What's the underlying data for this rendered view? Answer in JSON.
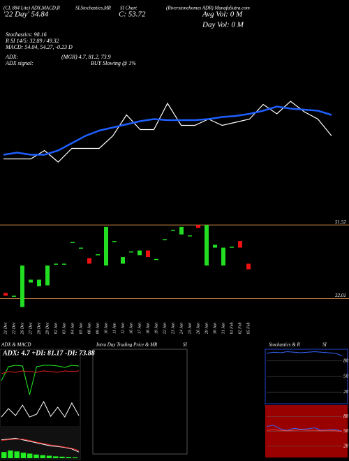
{
  "header": {
    "left": "(CL 884 Lite) ADX,MACD,R",
    "left2": "SI,Stochastics,MR",
    "mid": "SI Chart",
    "right": "(Riverstonehomes ADR) MunafaSutra.com",
    "day": "'22 Day' 54.84",
    "close": "C: 53.72",
    "avg_vol": "Avg Vol: 0  M",
    "day_vol": "Day Vol: 0   M",
    "stoch": "Stochastics: 98.16",
    "rsi": "R     SI 14/5: 32.89 / 49.32",
    "macd": "MACD: 54.04, 54.27, -0.23 D",
    "adx": "ADX:",
    "adx_vals": "(MGR) 4.7, 81.2, 73.9",
    "adx_signal": "ADX  signal:",
    "signal": "BUY Slowing @ 1%"
  },
  "chart_data": [
    {
      "type": "line",
      "ylim": [
        0,
        100
      ],
      "series": [
        {
          "color": "#ffffff",
          "values": [
            15,
            15,
            15,
            23,
            12,
            25,
            25,
            25,
            37,
            57,
            43,
            43,
            68,
            47,
            47,
            53,
            47,
            50,
            53,
            67,
            58,
            70,
            60,
            53,
            37
          ]
        },
        {
          "color": "#1f5fff",
          "values": [
            19,
            21,
            19,
            19,
            23,
            30,
            37,
            42,
            45,
            48,
            51,
            53,
            52,
            52,
            52,
            53,
            55,
            56,
            58,
            61,
            65,
            63,
            62,
            61,
            57
          ]
        }
      ]
    },
    {
      "type": "candlestick",
      "ylim": [
        0,
        100
      ],
      "up_color": "#22dd22",
      "down_color": "#ee1111",
      "categories": [
        "21 Dec",
        "22 Dec",
        "26 Dec",
        "27 Dec",
        "28 Dec",
        "29 Dec",
        "02 Jan",
        "03 Jan",
        "04 Jan",
        "05 Jan",
        "08 Jan",
        "09 Jan",
        "10 Jan",
        "11 Jan",
        "12 Jan",
        "16 Jan",
        "17 Jan",
        "18 Jan",
        "19 Jan",
        "22 Jan",
        "23 Jan",
        "24 Jan",
        "25 Jan",
        "26 Jan",
        "29 Jan",
        "30 Jan",
        "31 Jan",
        "01 Feb",
        "02 Feb",
        "05 Feb"
      ],
      "open": [
        19,
        15,
        4,
        30,
        26,
        27,
        49,
        49,
        72,
        66,
        56,
        59,
        48,
        73,
        50,
        62,
        59,
        64,
        54,
        75,
        85,
        81,
        79,
        91,
        48,
        67,
        48,
        67,
        74,
        50
      ],
      "close": [
        16,
        16,
        48,
        33,
        33,
        48,
        50,
        50,
        73,
        67,
        50,
        60,
        89,
        74,
        57,
        63,
        64,
        57,
        55,
        76,
        86,
        89,
        80,
        88,
        91,
        70,
        67,
        68,
        67,
        44
      ],
      "levels": [
        {
          "value": 91,
          "label": "51.52",
          "color": "#c08040"
        },
        {
          "value": 13,
          "label": "32.01",
          "color": "#c08040"
        }
      ]
    },
    {
      "type": "line",
      "title": "ADX  & MACD",
      "annotation": "ADX: 4.7 +DI: 81.17 -DI: 73.88",
      "ylim": [
        0,
        100
      ],
      "series": [
        {
          "color": "#22ee22",
          "values": [
            60,
            80,
            82,
            81,
            40,
            80,
            82,
            82,
            81,
            79,
            82,
            81
          ]
        },
        {
          "color": "#ee2222",
          "values": [
            70,
            73,
            72,
            74,
            73,
            72,
            74,
            73,
            72,
            74,
            73,
            74
          ]
        },
        {
          "color": "#ffffff",
          "values": [
            8,
            20,
            10,
            25,
            8,
            12,
            30,
            9,
            22,
            8,
            28,
            10
          ]
        }
      ]
    },
    {
      "type": "macd",
      "ylim": [
        0,
        100
      ],
      "bar_color": "#22ee22",
      "histogram": [
        20,
        25,
        22,
        18,
        15,
        12,
        10,
        8,
        6,
        5,
        4,
        3
      ],
      "series": [
        {
          "color": "#ffffff",
          "values": [
            60,
            62,
            65,
            60,
            55,
            50,
            45,
            40,
            38,
            35,
            30,
            20
          ]
        },
        {
          "color": "#ee2222",
          "values": [
            58,
            60,
            62,
            62,
            58,
            52,
            48,
            43,
            40,
            36,
            32,
            25
          ]
        }
      ]
    },
    {
      "type": "blank",
      "title": "Intra  Day Trading Price  & MR",
      "title2": "SI"
    },
    {
      "type": "line",
      "title": "Stochastics & R",
      "title2": "SI",
      "ylim": [
        0,
        100
      ],
      "yticks": [
        80,
        50,
        20
      ],
      "series": [
        {
          "color": "#3366ff",
          "values": [
            95,
            97,
            96,
            98,
            97,
            96,
            97,
            98,
            97,
            96,
            95,
            90
          ]
        }
      ]
    },
    {
      "type": "line",
      "ylim": [
        0,
        100
      ],
      "yticks": [
        80,
        50,
        20
      ],
      "series": [
        {
          "color": "#3366ff",
          "values": [
            60,
            62,
            55,
            52,
            56,
            54,
            55,
            57,
            52,
            53,
            54,
            50
          ]
        },
        {
          "color": "#ee4444",
          "values": [
            52,
            53,
            52,
            51,
            52,
            53,
            52,
            52,
            51,
            52,
            51,
            50
          ]
        }
      ]
    }
  ]
}
